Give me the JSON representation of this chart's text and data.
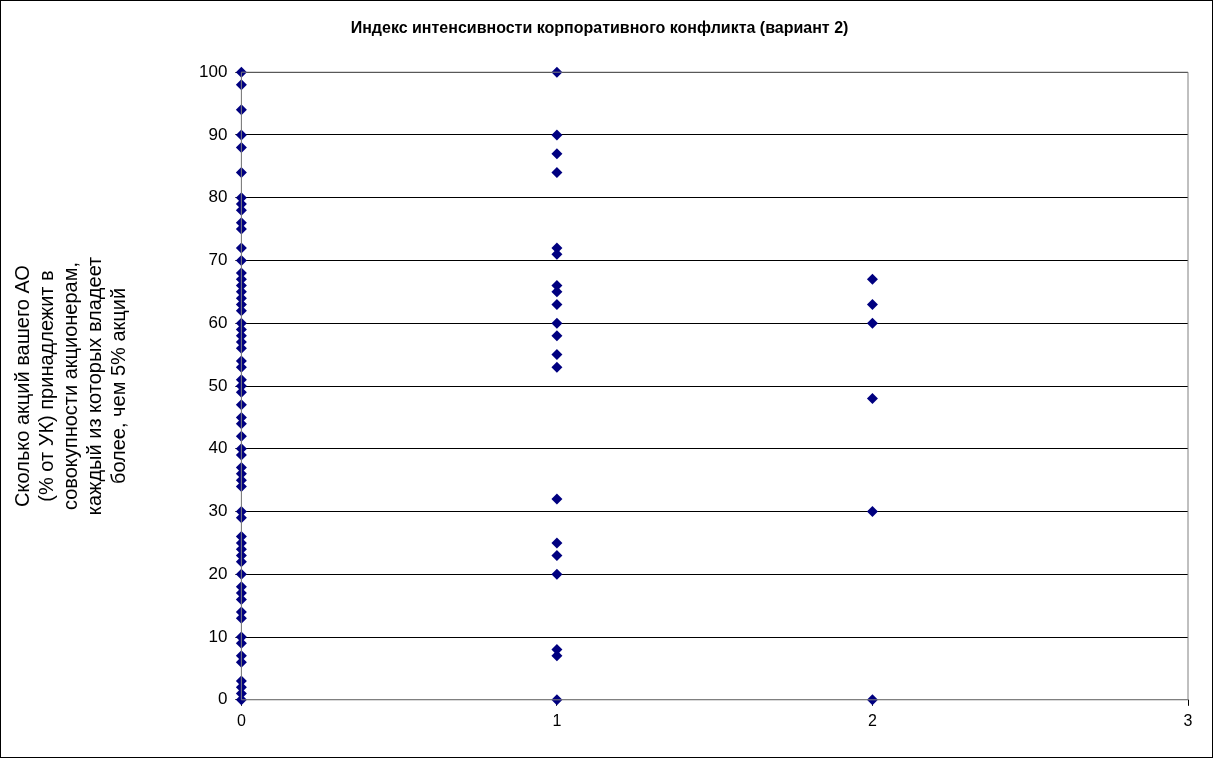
{
  "chart_data": {
    "type": "scatter",
    "title": "Индекс интенсивности корпоративного конфликта (вариант 2)",
    "ylabel": "Сколько акций вашего АО (% от УК) принадлежит в совокупности акционерам, каждый из которых владеет более, чем 5% акций",
    "series": [
      {
        "color": "#000080",
        "x": [
          0,
          0,
          0,
          0,
          0,
          0,
          0,
          0,
          0,
          0,
          0,
          0,
          0,
          0,
          0,
          0,
          0,
          0,
          0,
          0,
          0,
          0,
          0,
          0,
          0,
          0,
          0,
          0,
          0,
          0,
          0,
          0,
          0,
          0,
          0,
          0,
          0,
          0,
          0,
          0,
          0,
          0,
          0,
          0,
          0,
          0,
          0,
          0,
          0,
          0,
          0,
          0,
          0,
          0,
          0,
          0,
          0,
          0,
          0,
          0,
          0,
          1,
          1,
          1,
          1,
          1,
          1,
          1,
          1,
          1,
          1,
          1,
          1,
          1,
          1,
          1,
          1,
          1,
          1,
          1,
          1,
          2,
          2,
          2,
          2,
          2,
          2
        ],
        "values": [
          100,
          98,
          94,
          90,
          88,
          84,
          80,
          79,
          78,
          76,
          75,
          72,
          70,
          68,
          67,
          66,
          65,
          64,
          63,
          62,
          60,
          59,
          58,
          57,
          56,
          54,
          53,
          51,
          50,
          49,
          47,
          45,
          44,
          42,
          40,
          39,
          37,
          36,
          35,
          34,
          30,
          29,
          26,
          25,
          24,
          23,
          22,
          20,
          18,
          17,
          16,
          14,
          13,
          10,
          9,
          7,
          6,
          3,
          2,
          1,
          0,
          100,
          90,
          87,
          84,
          72,
          71,
          66,
          65,
          63,
          60,
          58,
          55,
          53,
          32,
          25,
          23,
          20,
          8,
          7,
          0,
          67,
          63,
          60,
          48,
          30,
          0
        ]
      }
    ],
    "xlim": [
      0,
      3
    ],
    "xticks": [
      0,
      1,
      2,
      3
    ],
    "ylim": [
      0,
      100
    ],
    "yticks": [
      0,
      10,
      20,
      30,
      40,
      50,
      60,
      70,
      80,
      90,
      100
    ],
    "grid": "y",
    "legend": false,
    "marker": "diamond"
  }
}
